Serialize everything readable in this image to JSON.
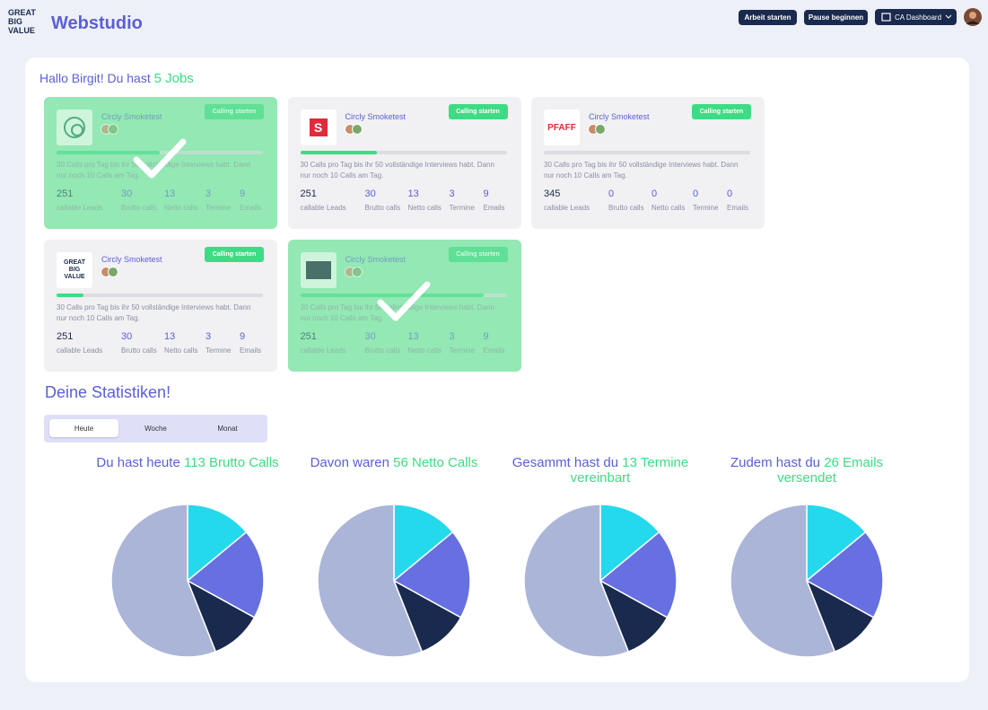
{
  "header": {
    "logo": "GREAT BIG VALUE",
    "title": "Webstudio",
    "buttons": [
      "Arbeit starten",
      "Pause beginnen"
    ],
    "dropdown": "CA Dashboard"
  },
  "greeting": {
    "text": "Hallo Birgit! Du hast",
    "highlight": "5 Jobs"
  },
  "jobs": [
    {
      "logo": "",
      "name": "Circly Smoketest",
      "button": "Calling starten",
      "progress": 50,
      "completed": true,
      "description": [
        "30 Calls pro Tag bis ihr 50 vollständige Interviews habt. Dann",
        "nur noch 10 Calls am Tag."
      ],
      "stats": [
        {
          "value": "251",
          "label": "callable Leads"
        },
        {
          "value": "30",
          "label": "Brutto calls"
        },
        {
          "value": "13",
          "label": "Netto calls"
        },
        {
          "value": "3",
          "label": "Termine"
        },
        {
          "value": "9",
          "label": "Emails"
        }
      ]
    },
    {
      "logo": "S",
      "name": "Circly Smoketest",
      "button": "Calling starten",
      "progress": 37,
      "completed": false,
      "description": [
        "30 Calls pro Tag bis ihr 50 vollständige Interviews habt. Dann",
        "nur noch 10 Calls am Tag."
      ],
      "stats": [
        {
          "value": "251",
          "label": "callable Leads"
        },
        {
          "value": "30",
          "label": "Brutto calls"
        },
        {
          "value": "13",
          "label": "Netto calls"
        },
        {
          "value": "3",
          "label": "Termine"
        },
        {
          "value": "9",
          "label": "Emails"
        }
      ]
    },
    {
      "logo": "PFAFF",
      "name": "Circly Smoketest",
      "button": "Calling starten",
      "progress": 0,
      "completed": false,
      "description": [
        "30 Calls pro Tag bis ihr 50 vollständige Interviews habt. Dann",
        "nur noch 10 Calls am Tag."
      ],
      "stats": [
        {
          "value": "345",
          "label": "callable Leads"
        },
        {
          "value": "0",
          "label": "Brutto calls"
        },
        {
          "value": "0",
          "label": "Netto calls"
        },
        {
          "value": "0",
          "label": "Termine"
        },
        {
          "value": "0",
          "label": "Emails"
        }
      ]
    },
    {
      "logo": "GREAT BIG VALUE",
      "name": "Circly Smoketest",
      "button": "Calling starten",
      "progress": 13,
      "completed": false,
      "description": [
        "30 Calls pro Tag bis ihr 50 vollständige Interviews habt. Dann",
        "nur noch 10 Calls am Tag."
      ],
      "stats": [
        {
          "value": "251",
          "label": "callable Leads"
        },
        {
          "value": "30",
          "label": "Brutto calls"
        },
        {
          "value": "13",
          "label": "Netto calls"
        },
        {
          "value": "3",
          "label": "Termine"
        },
        {
          "value": "9",
          "label": "Emails"
        }
      ]
    },
    {
      "logo": "",
      "name": "Circly Smoketest",
      "button": "Calling starten",
      "progress": 89,
      "completed": true,
      "description": [
        "30 Calls pro Tag bis ihr 50 vollständige Interviews habt. Dann",
        "nur noch 10 Calls am Tag."
      ],
      "stats": [
        {
          "value": "251",
          "label": "callable Leads"
        },
        {
          "value": "30",
          "label": "Brutto calls"
        },
        {
          "value": "13",
          "label": "Netto calls"
        },
        {
          "value": "3",
          "label": "Termine"
        },
        {
          "value": "9",
          "label": "Emails"
        }
      ]
    }
  ],
  "statistics": {
    "title": "Deine Statistiken!",
    "tabs": [
      "Heute",
      "Woche",
      "Monat"
    ],
    "active_tab": 0
  },
  "chart_data": [
    {
      "type": "pie",
      "title": [
        "Du hast heute",
        "113 Brutto",
        "Calls"
      ],
      "values": [
        14,
        19,
        11,
        56
      ],
      "colors": [
        "#25d9ec",
        "#6770e0",
        "#1a2a4e",
        "#abb5d8"
      ]
    },
    {
      "type": "pie",
      "title": [
        "Davon waren",
        "56 Netto",
        "Calls"
      ],
      "values": [
        14,
        19,
        11,
        56
      ],
      "colors": [
        "#25d9ec",
        "#6770e0",
        "#1a2a4e",
        "#abb5d8"
      ]
    },
    {
      "type": "pie",
      "title": [
        "Gesammt hast du",
        "13",
        "Termine vereinbart"
      ],
      "values": [
        14,
        19,
        11,
        56
      ],
      "colors": [
        "#25d9ec",
        "#6770e0",
        "#1a2a4e",
        "#abb5d8"
      ]
    },
    {
      "type": "pie",
      "title": [
        "Zudem hast du",
        "26 Emails",
        "versendet"
      ],
      "values": [
        14,
        19,
        11,
        56
      ],
      "colors": [
        "#25d9ec",
        "#6770e0",
        "#1a2a4e",
        "#abb5d8"
      ]
    }
  ]
}
